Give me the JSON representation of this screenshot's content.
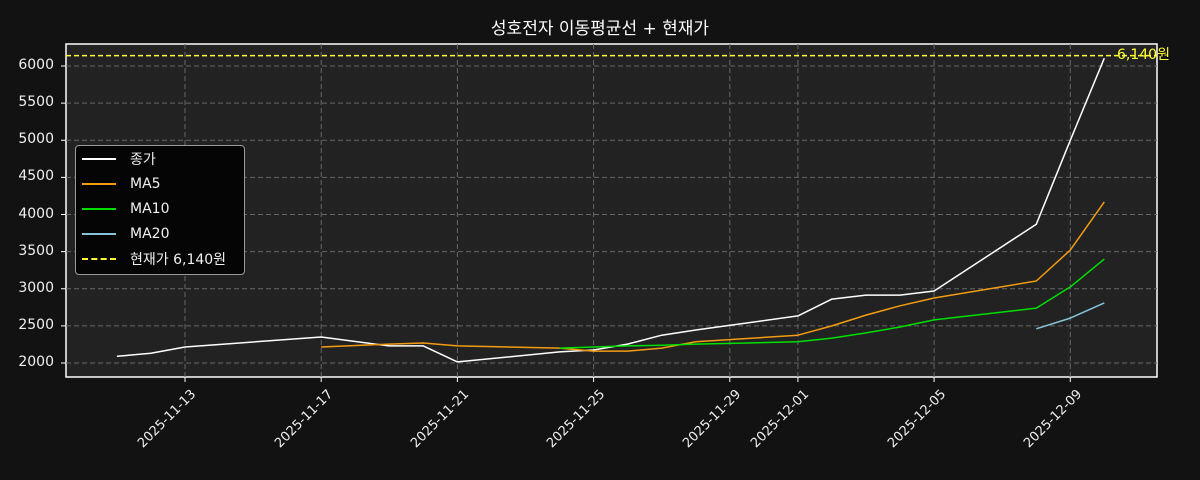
{
  "chart_data": {
    "type": "line",
    "title": "성호전자 이동평균선 + 현재가",
    "xlabel": "",
    "ylabel": "",
    "ylim": [
      1820,
      6300
    ],
    "yticks": [
      2000,
      2500,
      3000,
      3500,
      4000,
      4500,
      5000,
      5500,
      6000
    ],
    "xtick_labels": [
      "2025-11-13",
      "2025-11-17",
      "2025-11-21",
      "2025-11-25",
      "2025-11-29",
      "2025-12-01",
      "2025-12-05",
      "2025-12-09"
    ],
    "grid": true,
    "legend_position": "center left",
    "x": [
      "2025-11-11",
      "2025-11-12",
      "2025-11-13",
      "2025-11-17",
      "2025-11-19",
      "2025-11-20",
      "2025-11-21",
      "2025-11-24",
      "2025-11-25",
      "2025-11-26",
      "2025-11-27",
      "2025-11-28",
      "2025-12-01",
      "2025-12-02",
      "2025-12-03",
      "2025-12-04",
      "2025-12-05",
      "2025-12-08",
      "2025-12-09",
      "2025-12-10"
    ],
    "series": [
      {
        "name": "종가",
        "color": "#ffffff",
        "values": [
          2090,
          2130,
          2215,
          2350,
          2230,
          2230,
          2015,
          2150,
          2175,
          2255,
          2375,
          2445,
          2635,
          2860,
          2915,
          2915,
          2970,
          3870,
          5000,
          6105
        ]
      },
      {
        "name": "MA5",
        "color": "#f39c12",
        "values": [
          null,
          null,
          null,
          2215,
          2255,
          2270,
          2230,
          2200,
          2160,
          2160,
          2200,
          2285,
          2375,
          2500,
          2645,
          2770,
          2875,
          3105,
          3520,
          4170
        ]
      },
      {
        "name": "MA10",
        "color": "#00e000",
        "values": [
          null,
          null,
          null,
          null,
          null,
          null,
          null,
          2200,
          2215,
          2230,
          2240,
          2255,
          2285,
          2335,
          2405,
          2485,
          2580,
          2740,
          3025,
          3400
        ]
      },
      {
        "name": "MA20",
        "color": "#87c4d8",
        "values": [
          null,
          null,
          null,
          null,
          null,
          null,
          null,
          null,
          null,
          null,
          null,
          null,
          null,
          null,
          null,
          null,
          null,
          2460,
          2605,
          2810
        ]
      }
    ],
    "hlines": [
      {
        "name": "현재가 6,140원",
        "value": 6140,
        "color": "#ffff33",
        "style": "dashed",
        "annotation": "6,140원"
      }
    ]
  },
  "legend": {
    "items": [
      {
        "label": "종가",
        "color": "#ffffff",
        "style": "solid"
      },
      {
        "label": "MA5",
        "color": "#f39c12",
        "style": "solid"
      },
      {
        "label": "MA10",
        "color": "#00e000",
        "style": "solid"
      },
      {
        "label": "MA20",
        "color": "#87c4d8",
        "style": "solid"
      },
      {
        "label": "현재가 6,140원",
        "color": "#ffff33",
        "style": "dashed"
      }
    ]
  },
  "colors": {
    "background": "#121212",
    "plot_background": "#222222",
    "grid": "#666666",
    "axis": "#ffffff"
  }
}
